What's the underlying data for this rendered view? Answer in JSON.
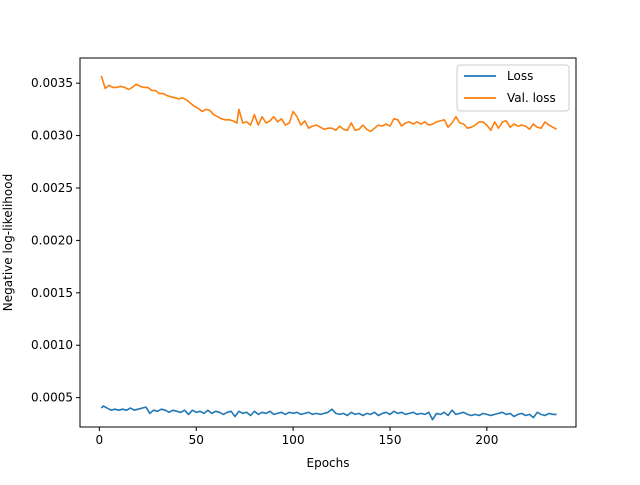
{
  "chart_data": {
    "type": "line",
    "xlabel": "Epochs",
    "ylabel": "Negative log-likelihood",
    "xlim": [
      -10,
      246
    ],
    "ylim": [
      0.00022,
      0.00374
    ],
    "xticks": [
      0,
      50,
      100,
      150,
      200
    ],
    "xtick_labels": [
      "0",
      "50",
      "100",
      "150",
      "200"
    ],
    "yticks": [
      0.0005,
      0.001,
      0.0015,
      0.002,
      0.0025,
      0.003,
      0.0035
    ],
    "ytick_labels": [
      "0.0005",
      "0.0010",
      "0.0015",
      "0.0020",
      "0.0025",
      "0.0030",
      "0.0035"
    ],
    "grid": false,
    "legend_position": "top-right",
    "series": [
      {
        "name": "Loss",
        "color": "#1f77b4",
        "points": [
          [
            1,
            0.0004
          ],
          [
            2,
            0.00042
          ],
          [
            4,
            0.0004
          ],
          [
            6,
            0.00038
          ],
          [
            8,
            0.00039
          ],
          [
            10,
            0.00038
          ],
          [
            12,
            0.00039
          ],
          [
            14,
            0.00038
          ],
          [
            16,
            0.0004
          ],
          [
            18,
            0.00038
          ],
          [
            20,
            0.00039
          ],
          [
            22,
            0.0004
          ],
          [
            24,
            0.00041
          ],
          [
            26,
            0.00035
          ],
          [
            28,
            0.00038
          ],
          [
            30,
            0.00037
          ],
          [
            32,
            0.00039
          ],
          [
            34,
            0.00038
          ],
          [
            36,
            0.00036
          ],
          [
            38,
            0.00038
          ],
          [
            40,
            0.00037
          ],
          [
            42,
            0.00036
          ],
          [
            44,
            0.00038
          ],
          [
            46,
            0.00034
          ],
          [
            48,
            0.00038
          ],
          [
            50,
            0.00036
          ],
          [
            52,
            0.00037
          ],
          [
            54,
            0.00035
          ],
          [
            56,
            0.00038
          ],
          [
            58,
            0.00035
          ],
          [
            60,
            0.00037
          ],
          [
            62,
            0.00036
          ],
          [
            64,
            0.00034
          ],
          [
            66,
            0.00036
          ],
          [
            68,
            0.00037
          ],
          [
            70,
            0.00032
          ],
          [
            72,
            0.00037
          ],
          [
            74,
            0.00035
          ],
          [
            76,
            0.00036
          ],
          [
            78,
            0.00033
          ],
          [
            80,
            0.00037
          ],
          [
            82,
            0.00034
          ],
          [
            84,
            0.00036
          ],
          [
            86,
            0.00035
          ],
          [
            88,
            0.00037
          ],
          [
            90,
            0.00034
          ],
          [
            92,
            0.00035
          ],
          [
            94,
            0.00036
          ],
          [
            96,
            0.00034
          ],
          [
            98,
            0.00036
          ],
          [
            100,
            0.00035
          ],
          [
            102,
            0.00036
          ],
          [
            104,
            0.00034
          ],
          [
            106,
            0.00035
          ],
          [
            108,
            0.00036
          ],
          [
            110,
            0.00034
          ],
          [
            112,
            0.00035
          ],
          [
            114,
            0.00034
          ],
          [
            116,
            0.00035
          ],
          [
            118,
            0.00036
          ],
          [
            120,
            0.00039
          ],
          [
            122,
            0.00035
          ],
          [
            124,
            0.00034
          ],
          [
            126,
            0.00035
          ],
          [
            128,
            0.00033
          ],
          [
            130,
            0.00036
          ],
          [
            132,
            0.00034
          ],
          [
            134,
            0.00035
          ],
          [
            136,
            0.00033
          ],
          [
            138,
            0.00035
          ],
          [
            140,
            0.00034
          ],
          [
            142,
            0.00036
          ],
          [
            144,
            0.00033
          ],
          [
            146,
            0.00035
          ],
          [
            148,
            0.00036
          ],
          [
            150,
            0.00034
          ],
          [
            152,
            0.00037
          ],
          [
            154,
            0.00035
          ],
          [
            156,
            0.00036
          ],
          [
            158,
            0.00034
          ],
          [
            160,
            0.00035
          ],
          [
            162,
            0.00036
          ],
          [
            164,
            0.00034
          ],
          [
            166,
            0.00035
          ],
          [
            168,
            0.00034
          ],
          [
            170,
            0.00036
          ],
          [
            172,
            0.00029
          ],
          [
            174,
            0.00035
          ],
          [
            176,
            0.00034
          ],
          [
            178,
            0.00036
          ],
          [
            180,
            0.00033
          ],
          [
            182,
            0.00038
          ],
          [
            184,
            0.00034
          ],
          [
            186,
            0.00035
          ],
          [
            188,
            0.00036
          ],
          [
            190,
            0.00034
          ],
          [
            192,
            0.00033
          ],
          [
            194,
            0.00034
          ],
          [
            196,
            0.00033
          ],
          [
            198,
            0.00035
          ],
          [
            200,
            0.00034
          ],
          [
            202,
            0.00033
          ],
          [
            204,
            0.00034
          ],
          [
            206,
            0.00035
          ],
          [
            208,
            0.00036
          ],
          [
            210,
            0.00034
          ],
          [
            212,
            0.00035
          ],
          [
            214,
            0.00032
          ],
          [
            216,
            0.00034
          ],
          [
            218,
            0.00035
          ],
          [
            220,
            0.00033
          ],
          [
            222,
            0.00034
          ],
          [
            224,
            0.00031
          ],
          [
            226,
            0.00036
          ],
          [
            228,
            0.00034
          ],
          [
            230,
            0.00033
          ],
          [
            232,
            0.00035
          ],
          [
            234,
            0.00034
          ],
          [
            236,
            0.00034
          ]
        ]
      },
      {
        "name": "Val. loss",
        "color": "#ff7f0e",
        "points": [
          [
            1,
            0.00357
          ],
          [
            3,
            0.00345
          ],
          [
            5,
            0.00348
          ],
          [
            7,
            0.00346
          ],
          [
            9,
            0.00346
          ],
          [
            11,
            0.00347
          ],
          [
            13,
            0.00346
          ],
          [
            15,
            0.00344
          ],
          [
            17,
            0.00346
          ],
          [
            19,
            0.00349
          ],
          [
            21,
            0.00347
          ],
          [
            23,
            0.00346
          ],
          [
            25,
            0.00346
          ],
          [
            27,
            0.00343
          ],
          [
            29,
            0.00343
          ],
          [
            31,
            0.0034
          ],
          [
            33,
            0.0034
          ],
          [
            35,
            0.00338
          ],
          [
            37,
            0.00337
          ],
          [
            39,
            0.00336
          ],
          [
            41,
            0.00335
          ],
          [
            43,
            0.00336
          ],
          [
            45,
            0.00334
          ],
          [
            47,
            0.00331
          ],
          [
            49,
            0.00328
          ],
          [
            51,
            0.00326
          ],
          [
            53,
            0.00323
          ],
          [
            55,
            0.00325
          ],
          [
            57,
            0.00324
          ],
          [
            59,
            0.0032
          ],
          [
            61,
            0.00318
          ],
          [
            63,
            0.00316
          ],
          [
            65,
            0.00315
          ],
          [
            67,
            0.00315
          ],
          [
            69,
            0.00314
          ],
          [
            71,
            0.00312
          ],
          [
            72,
            0.00325
          ],
          [
            74,
            0.00312
          ],
          [
            76,
            0.00313
          ],
          [
            78,
            0.0031
          ],
          [
            80,
            0.0032
          ],
          [
            82,
            0.0031
          ],
          [
            84,
            0.00318
          ],
          [
            86,
            0.00312
          ],
          [
            88,
            0.00314
          ],
          [
            90,
            0.00318
          ],
          [
            92,
            0.00313
          ],
          [
            94,
            0.00316
          ],
          [
            96,
            0.0031
          ],
          [
            98,
            0.00312
          ],
          [
            100,
            0.00323
          ],
          [
            102,
            0.00318
          ],
          [
            104,
            0.0031
          ],
          [
            106,
            0.00314
          ],
          [
            108,
            0.00307
          ],
          [
            110,
            0.00309
          ],
          [
            112,
            0.0031
          ],
          [
            114,
            0.00308
          ],
          [
            116,
            0.00306
          ],
          [
            118,
            0.00307
          ],
          [
            120,
            0.00307
          ],
          [
            122,
            0.00305
          ],
          [
            124,
            0.00309
          ],
          [
            126,
            0.00306
          ],
          [
            128,
            0.00305
          ],
          [
            130,
            0.00312
          ],
          [
            132,
            0.00305
          ],
          [
            134,
            0.00306
          ],
          [
            136,
            0.0031
          ],
          [
            138,
            0.00306
          ],
          [
            140,
            0.00304
          ],
          [
            142,
            0.00307
          ],
          [
            144,
            0.0031
          ],
          [
            146,
            0.00309
          ],
          [
            148,
            0.00311
          ],
          [
            150,
            0.00309
          ],
          [
            152,
            0.00316
          ],
          [
            154,
            0.00315
          ],
          [
            156,
            0.00309
          ],
          [
            158,
            0.00312
          ],
          [
            160,
            0.00313
          ],
          [
            162,
            0.00311
          ],
          [
            164,
            0.00313
          ],
          [
            166,
            0.00311
          ],
          [
            168,
            0.00313
          ],
          [
            170,
            0.0031
          ],
          [
            172,
            0.00311
          ],
          [
            174,
            0.00313
          ],
          [
            176,
            0.00314
          ],
          [
            178,
            0.00315
          ],
          [
            180,
            0.00308
          ],
          [
            182,
            0.00312
          ],
          [
            184,
            0.00318
          ],
          [
            186,
            0.00312
          ],
          [
            188,
            0.00311
          ],
          [
            190,
            0.00307
          ],
          [
            192,
            0.00308
          ],
          [
            194,
            0.0031
          ],
          [
            196,
            0.00313
          ],
          [
            198,
            0.00313
          ],
          [
            200,
            0.0031
          ],
          [
            202,
            0.00305
          ],
          [
            204,
            0.00313
          ],
          [
            206,
            0.00307
          ],
          [
            208,
            0.00313
          ],
          [
            210,
            0.00314
          ],
          [
            212,
            0.00308
          ],
          [
            214,
            0.00311
          ],
          [
            216,
            0.00309
          ],
          [
            218,
            0.0031
          ],
          [
            220,
            0.00309
          ],
          [
            222,
            0.00306
          ],
          [
            224,
            0.00311
          ],
          [
            226,
            0.00308
          ],
          [
            228,
            0.00307
          ],
          [
            230,
            0.00313
          ],
          [
            232,
            0.0031
          ],
          [
            234,
            0.00308
          ],
          [
            236,
            0.00306
          ]
        ]
      }
    ]
  }
}
